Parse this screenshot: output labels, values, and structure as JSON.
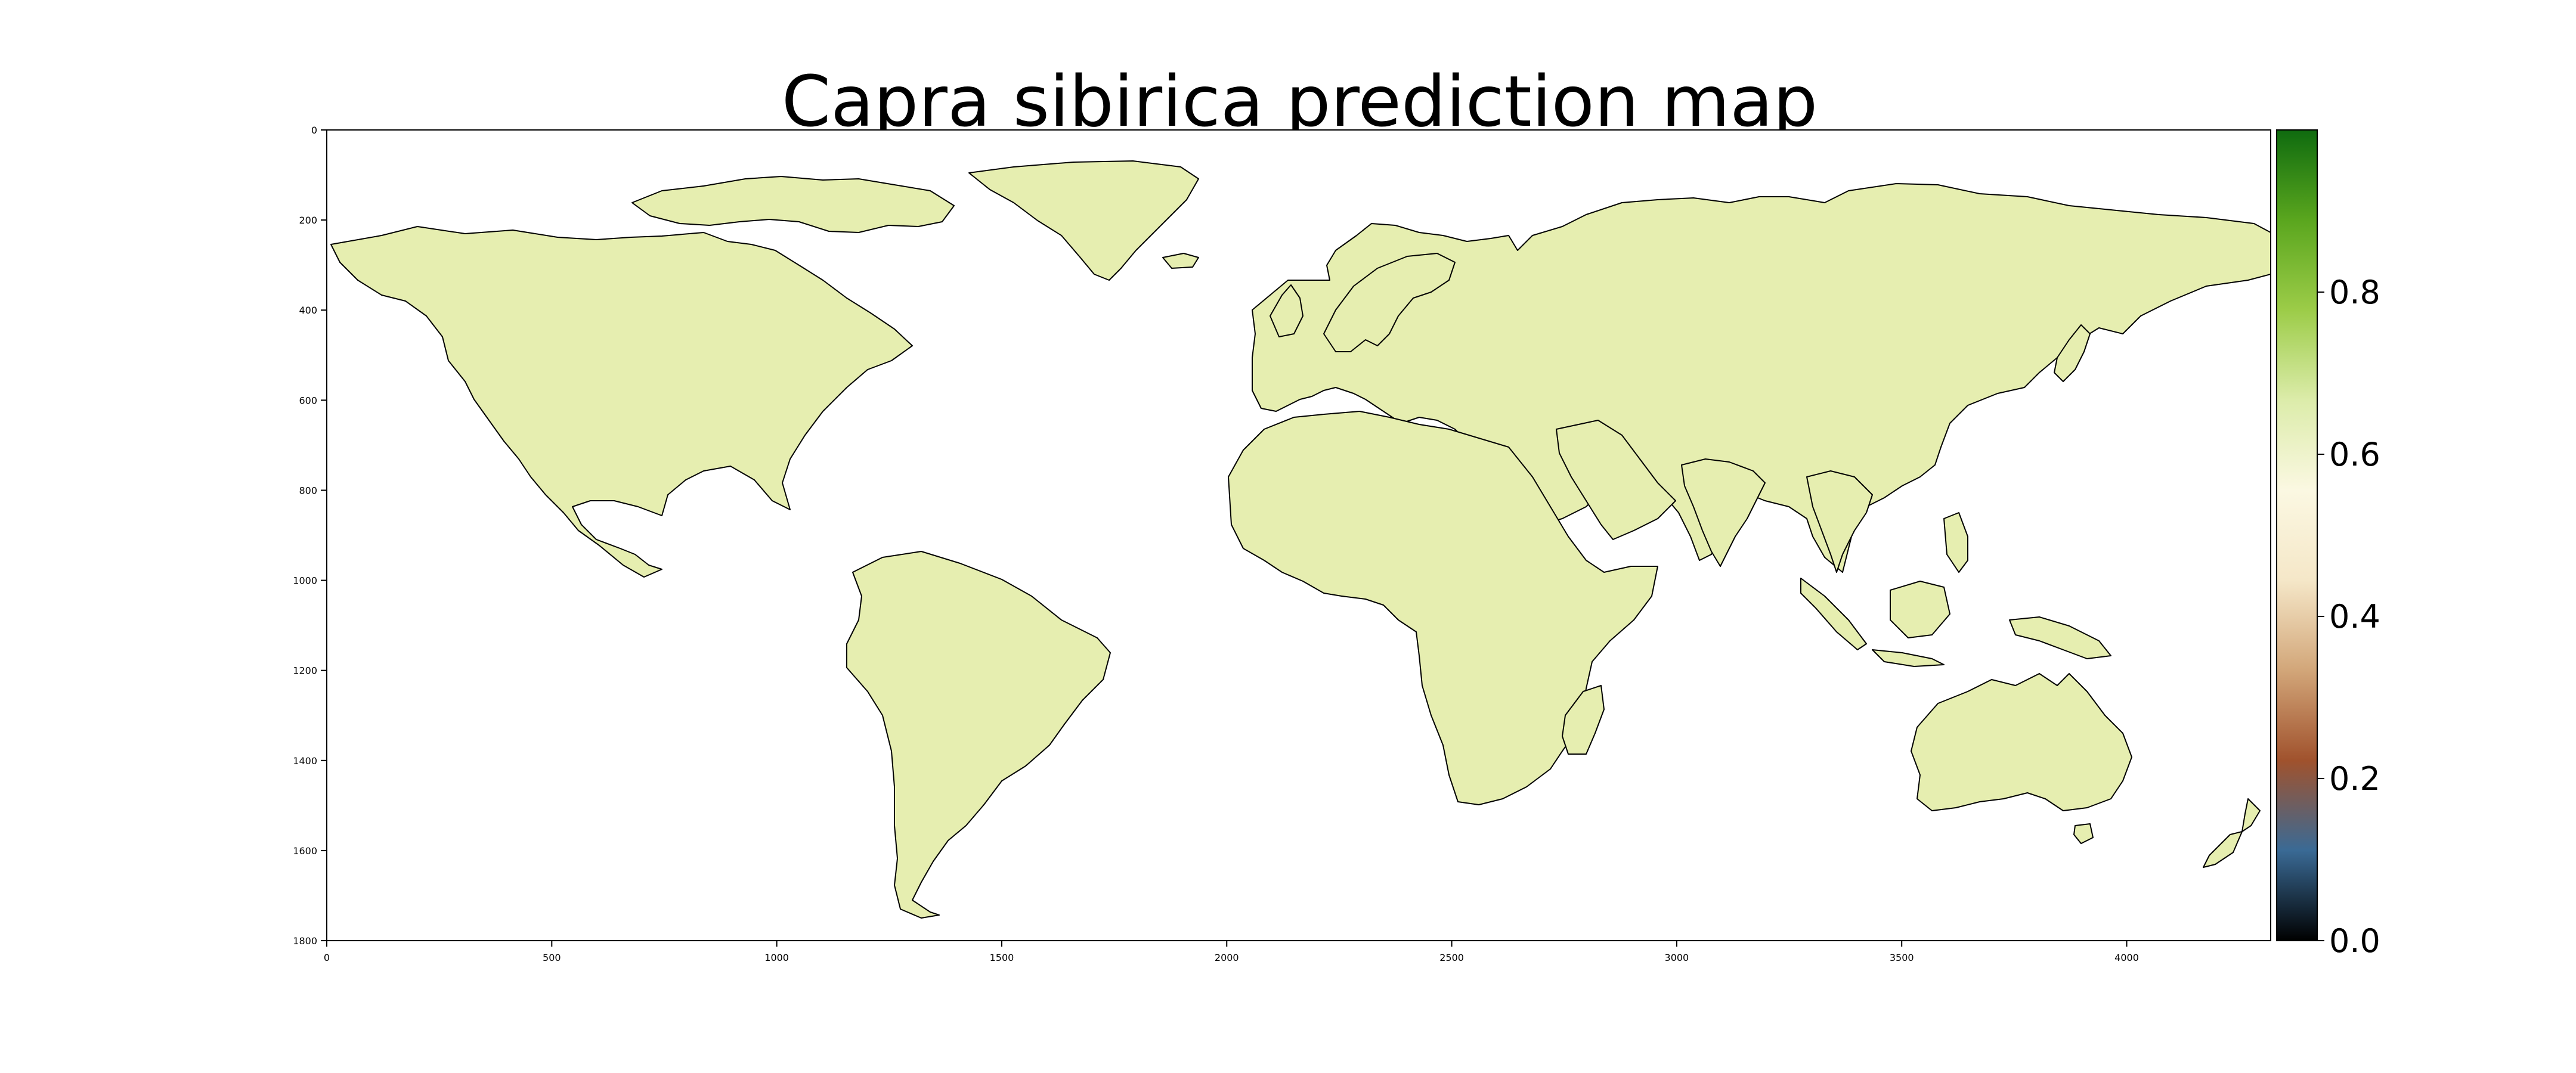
{
  "map": {
    "title": "Capra sibirica prediction map",
    "x_ticks": [
      "0",
      "500",
      "1000",
      "1500",
      "2000",
      "2500",
      "3000",
      "3500",
      "4000"
    ],
    "y_ticks": [
      "0",
      "200",
      "400",
      "600",
      "800",
      "1000",
      "1200",
      "1400",
      "1600",
      "1800"
    ],
    "x_range": [
      0,
      4320
    ],
    "y_range": [
      0,
      1800
    ],
    "y_inverted": true,
    "land_fill": "#e6eeb0",
    "land_outline": "#000000"
  },
  "colorbar": {
    "ticks": [
      "0.0",
      "0.2",
      "0.4",
      "0.6",
      "0.8"
    ],
    "range": [
      0.0,
      1.0
    ],
    "colors": [
      "#000000",
      "#3a6a95",
      "#a0522d",
      "#d2a679",
      "#f5e7c8",
      "#fbf8e2",
      "#dcecaa",
      "#9ccc48",
      "#5aa61e",
      "#0f6b0f"
    ]
  }
}
